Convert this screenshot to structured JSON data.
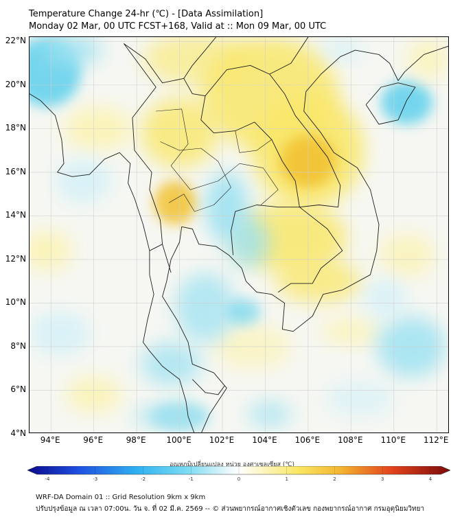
{
  "title": {
    "line1": "Temperature Change 24-hr (℃) - [Data Assimilation]",
    "line2": "Monday 02 Mar, 00 UTC FCST+168, Valid at :: Mon 09 Mar, 00 UTC"
  },
  "map": {
    "lat_ticks": [
      "22°N",
      "20°N",
      "18°N",
      "16°N",
      "14°N",
      "12°N",
      "10°N",
      "8°N",
      "6°N",
      "4°N"
    ],
    "lon_ticks": [
      "94°E",
      "96°E",
      "98°E",
      "100°E",
      "102°E",
      "104°E",
      "106°E",
      "108°E",
      "110°E",
      "112°E"
    ],
    "lat_range": [
      4,
      22.2
    ],
    "lon_range": [
      93,
      112.6
    ],
    "colors": {
      "neutral": "#f6f7f2",
      "warm_light": "#fbf3b4",
      "warm": "#f9e76a",
      "warm_strong": "#f2c232",
      "cool_light": "#d5f1f8",
      "cool": "#9fe2f2",
      "cool_strong": "#5fd0ec",
      "border": "#1a1a1a",
      "grid": "#cfcfcf"
    }
  },
  "colorbar": {
    "title": "อุณหภูมิเปลี่ยนแปลง หน่วย องศาเซลเซียส (℃)",
    "ticks": [
      "-4",
      "-3",
      "-2",
      "-1",
      "0",
      "1",
      "2",
      "3",
      "4"
    ],
    "range": [
      -4,
      4
    ]
  },
  "footer": {
    "line1": "WRF-DA Domain 01 :: Grid Resolution 9km x 9km",
    "line2": "ปรับปรุงข้อมูล ณ เวลา 07:00น. วัน จ. ที่ 02 มี.ค. 2569 -- © ส่วนพยากรณ์อากาศเชิงตัวเลข กองพยากรณ์อากาศ กรมอุตุนิยมวิทยา"
  }
}
